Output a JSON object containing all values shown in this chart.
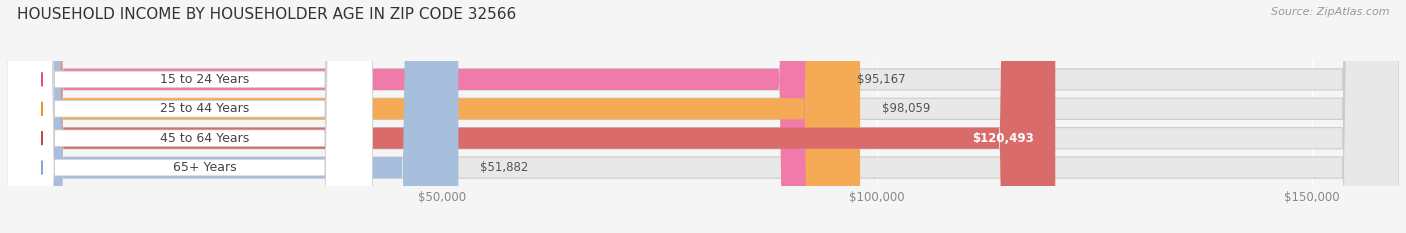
{
  "title": "HOUSEHOLD INCOME BY HOUSEHOLDER AGE IN ZIP CODE 32566",
  "source": "Source: ZipAtlas.com",
  "categories": [
    "15 to 24 Years",
    "25 to 44 Years",
    "45 to 64 Years",
    "65+ Years"
  ],
  "values": [
    95167,
    98059,
    120493,
    51882
  ],
  "bar_colors": [
    "#f07aaa",
    "#f5aa55",
    "#d96b6b",
    "#a8bedd"
  ],
  "dot_colors": [
    "#e8507a",
    "#f0902a",
    "#cc4444",
    "#88a8d0"
  ],
  "labels": [
    "$95,167",
    "$98,059",
    "$120,493",
    "$51,882"
  ],
  "label_colors": [
    "#555555",
    "#555555",
    "#ffffff",
    "#555555"
  ],
  "xmax": 160000,
  "xticks": [
    50000,
    100000,
    150000
  ],
  "xticklabels": [
    "$50,000",
    "$100,000",
    "$150,000"
  ],
  "bg_color": "#f5f5f5",
  "bar_bg_color": "#e8e8e8",
  "pill_bg_color": "#ffffff",
  "title_fontsize": 11,
  "source_fontsize": 8,
  "label_fontsize": 8.5,
  "tick_fontsize": 8.5,
  "category_fontsize": 9
}
